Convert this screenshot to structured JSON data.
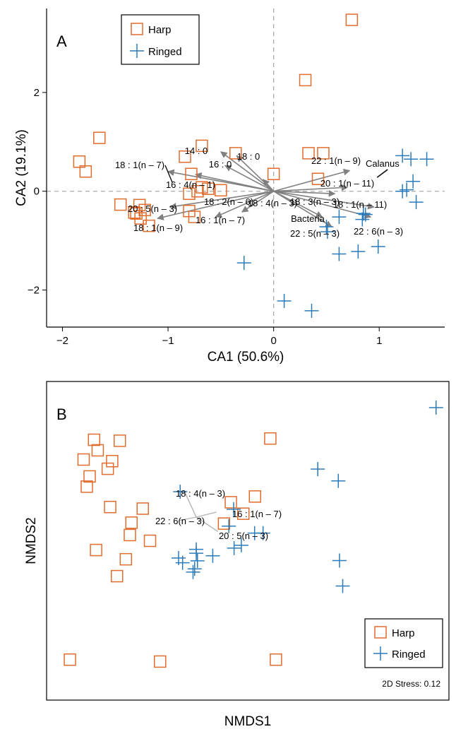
{
  "colors": {
    "harp": "#e06c2e",
    "ringed": "#2b7bba",
    "vector_A": "#808080",
    "vector_B": "#b5b5b5",
    "calanus_vector": "#111111"
  },
  "chart_data": [
    {
      "panel": "A",
      "type": "scatter",
      "xlabel": "CA1 (50.6%)",
      "ylabel": "CA2 (19.1%)",
      "xlim": [
        -2.15,
        1.62
      ],
      "ylim": [
        -2.75,
        3.7
      ],
      "xticks": [
        -2,
        -1,
        0,
        1
      ],
      "xtick_labels": [
        "−2",
        "−1",
        "0",
        "1"
      ],
      "yticks": [
        -2,
        0,
        2
      ],
      "ytick_labels": [
        "−2",
        "0",
        "2"
      ],
      "zero_lines": true,
      "legend": {
        "position": "top-left",
        "entries": [
          "Harp",
          "Ringed"
        ]
      },
      "series": [
        {
          "name": "Harp",
          "marker": "square",
          "points": [
            [
              0.74,
              3.47
            ],
            [
              0.3,
              2.25
            ],
            [
              -1.65,
              1.08
            ],
            [
              -1.84,
              0.6
            ],
            [
              -1.78,
              0.4
            ],
            [
              -0.68,
              0.92
            ],
            [
              -0.84,
              0.7
            ],
            [
              -0.78,
              0.35
            ],
            [
              -0.8,
              -0.05
            ],
            [
              -0.62,
              0.05
            ],
            [
              -0.68,
              0.08
            ],
            [
              -0.72,
              0.0
            ],
            [
              -0.5,
              0.02
            ],
            [
              -0.36,
              0.77
            ],
            [
              0.0,
              0.35
            ],
            [
              0.33,
              0.77
            ],
            [
              0.47,
              0.77
            ],
            [
              0.42,
              0.25
            ],
            [
              -1.45,
              -0.27
            ],
            [
              -1.32,
              -0.43
            ],
            [
              -1.27,
              -0.28
            ],
            [
              -1.22,
              -0.38
            ],
            [
              -0.8,
              -0.4
            ],
            [
              -0.75,
              -0.52
            ],
            [
              -1.18,
              -0.7
            ],
            [
              -1.26,
              -0.55
            ],
            [
              -1.3,
              -0.45
            ]
          ]
        },
        {
          "name": "Ringed",
          "marker": "plus",
          "points": [
            [
              1.22,
              0.72
            ],
            [
              1.3,
              0.65
            ],
            [
              1.45,
              0.65
            ],
            [
              1.32,
              0.2
            ],
            [
              1.22,
              0.0
            ],
            [
              1.26,
              0.03
            ],
            [
              1.35,
              -0.22
            ],
            [
              0.87,
              -0.47
            ],
            [
              0.84,
              -0.57
            ],
            [
              0.85,
              -0.45
            ],
            [
              0.62,
              -0.52
            ],
            [
              0.5,
              -0.72
            ],
            [
              0.51,
              -0.82
            ],
            [
              0.62,
              -1.27
            ],
            [
              0.8,
              -1.22
            ],
            [
              0.99,
              -1.12
            ],
            [
              -0.28,
              -1.45
            ],
            [
              0.1,
              -2.22
            ],
            [
              0.36,
              -2.42
            ]
          ]
        }
      ],
      "vectors": [
        {
          "label": "14 : 0",
          "x": -0.5,
          "y": 0.8
        },
        {
          "label": "16 : 0",
          "x": -0.46,
          "y": 0.52
        },
        {
          "label": "18 : 0",
          "x": -0.35,
          "y": 0.72
        },
        {
          "label": "18 : 1(n – 7)",
          "x": -1.0,
          "y": 0.4
        },
        {
          "label": "16 : 4(n – 1)",
          "x": -0.74,
          "y": 0.34
        },
        {
          "label": "20 : 5(n – 3)",
          "x": -0.98,
          "y": -0.32
        },
        {
          "label": "18 : 1(n – 9)",
          "x": -1.1,
          "y": -0.55
        },
        {
          "label": "16 : 1(n – 7)",
          "x": -0.55,
          "y": -0.52
        },
        {
          "label": "18 : 2(n – 6)",
          "x": -0.3,
          "y": -0.42
        },
        {
          "label": "18 : 4(n – 3)",
          "x": -0.1,
          "y": 0.24
        },
        {
          "label": "18 : 3(n – 3)",
          "x": 0.58,
          "y": -0.05
        },
        {
          "label": "22 : 1(n – 9)",
          "x": 0.72,
          "y": 0.42
        },
        {
          "label": "20 : 1(n – 11)",
          "x": 0.7,
          "y": 0.08
        },
        {
          "label": "18 : 1(n – 11)",
          "x": 0.95,
          "y": -0.32
        },
        {
          "label": "22 : 6(n – 3)",
          "x": 0.92,
          "y": -0.52
        },
        {
          "label": "22 : 5(n – 3)",
          "x": 0.55,
          "y": -0.72
        },
        {
          "label": "Bacteria",
          "x": 0.46,
          "y": -0.52
        }
      ]
    },
    {
      "panel": "B",
      "type": "scatter",
      "xlabel": "NMDS1",
      "ylabel": "NMDS2",
      "xlim": [
        0,
        100
      ],
      "ylim": [
        0,
        100
      ],
      "axis_ticks": false,
      "stress_label": "2D Stress: 0.12",
      "legend": {
        "position": "bottom-right",
        "entries": [
          "Harp",
          "Ringed"
        ]
      },
      "series": [
        {
          "name": "Harp",
          "marker": "square",
          "points": [
            [
              11.8,
              81.7
            ],
            [
              12.7,
              78.4
            ],
            [
              18.2,
              81.4
            ],
            [
              9.2,
              75.5
            ],
            [
              16.3,
              75.0
            ],
            [
              15.2,
              72.6
            ],
            [
              10.7,
              70.2
            ],
            [
              10.0,
              67.0
            ],
            [
              15.8,
              60.6
            ],
            [
              23.9,
              60.1
            ],
            [
              21.1,
              55.7
            ],
            [
              20.7,
              51.8
            ],
            [
              25.7,
              50.0
            ],
            [
              12.3,
              47.1
            ],
            [
              19.7,
              44.2
            ],
            [
              17.5,
              38.9
            ],
            [
              5.8,
              12.7
            ],
            [
              28.2,
              12.1
            ],
            [
              55.6,
              82.1
            ],
            [
              51.8,
              63.9
            ],
            [
              45.8,
              62.1
            ],
            [
              48.9,
              58.5
            ],
            [
              44.1,
              55.4
            ],
            [
              57.0,
              12.7
            ]
          ]
        },
        {
          "name": "Ringed",
          "marker": "plus",
          "points": [
            [
              96.8,
              91.8
            ],
            [
              67.4,
              72.5
            ],
            [
              72.5,
              68.8
            ],
            [
              33.2,
              65.4
            ],
            [
              46.5,
              59.9
            ],
            [
              45.3,
              54.6
            ],
            [
              51.7,
              52.4
            ],
            [
              53.8,
              52.4
            ],
            [
              48.4,
              48.6
            ],
            [
              46.6,
              47.7
            ],
            [
              37.2,
              47.3
            ],
            [
              37.2,
              46.1
            ],
            [
              41.3,
              45.3
            ],
            [
              37.5,
              43.7
            ],
            [
              32.8,
              44.6
            ],
            [
              33.8,
              43.1
            ],
            [
              36.8,
              41.2
            ],
            [
              36.4,
              40.2
            ],
            [
              72.8,
              43.8
            ],
            [
              73.6,
              35.8
            ]
          ]
        }
      ],
      "vectors": [
        {
          "label": "18 : 4(n – 3)",
          "x": 34.3,
          "y": 65.4
        },
        {
          "label": "22 : 6(n – 3)",
          "x": 33.0,
          "y": 56.4
        },
        {
          "label": "16 : 1(n – 7)",
          "x": 42.2,
          "y": 59.0
        },
        {
          "label": "20 : 5(n – 3)",
          "x": 42.6,
          "y": 52.9
        }
      ]
    }
  ]
}
